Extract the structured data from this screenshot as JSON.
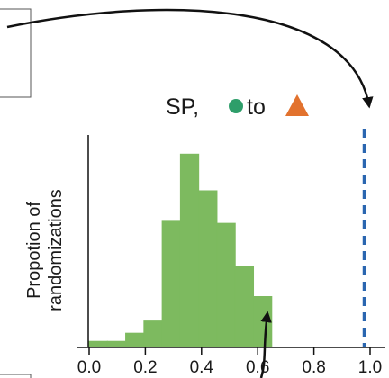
{
  "chart_data": {
    "type": "bar",
    "title": {
      "prefix": "SP,",
      "middle": "to",
      "from_marker": {
        "shape": "circle",
        "color": "#2e9e6a"
      },
      "to_marker": {
        "shape": "triangle",
        "color": "#e2722e"
      }
    },
    "ylabel_lines": [
      "Propotion of",
      "randomizations"
    ],
    "xlabel": "",
    "xlim": [
      0.0,
      1.0
    ],
    "ylim": [
      0,
      1
    ],
    "x_ticks": [
      "0.0",
      "0.2",
      "0.4",
      "0.6",
      "0.8",
      "1.0"
    ],
    "bar_color": "#7dba5f",
    "bin_width": 0.065,
    "bins": [
      {
        "x": 0.0,
        "y": 0.03
      },
      {
        "x": 0.065,
        "y": 0.03
      },
      {
        "x": 0.13,
        "y": 0.07
      },
      {
        "x": 0.195,
        "y": 0.13
      },
      {
        "x": 0.26,
        "y": 0.62
      },
      {
        "x": 0.325,
        "y": 0.95
      },
      {
        "x": 0.39,
        "y": 0.77
      },
      {
        "x": 0.455,
        "y": 0.61
      },
      {
        "x": 0.52,
        "y": 0.4
      },
      {
        "x": 0.585,
        "y": 0.25
      },
      {
        "x": 0.65,
        "y": 0.0
      }
    ],
    "observed_value": 0.98,
    "observed_line_color": "#2a66b0",
    "arrow_color": "#111111"
  }
}
